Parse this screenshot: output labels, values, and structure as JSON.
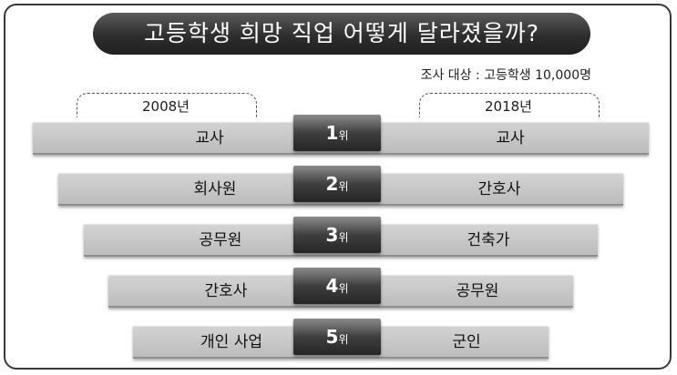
{
  "header": {
    "title": "고등학생 희망 직업 어떻게 달라졌을까?",
    "note": "조사 대상 : 고등학생 10,000명"
  },
  "chart_data": {
    "type": "table",
    "rank_unit": "위",
    "columns": [
      "2008년",
      "2018년"
    ],
    "rows": [
      {
        "rank": "1",
        "left": "교사",
        "right": "교사"
      },
      {
        "rank": "2",
        "left": "회사원",
        "right": "간호사"
      },
      {
        "rank": "3",
        "left": "공무원",
        "right": "건축가"
      },
      {
        "rank": "4",
        "left": "간호사",
        "right": "공무원"
      },
      {
        "rank": "5",
        "left": "개인 사업",
        "right": "군인"
      }
    ]
  },
  "colors": {
    "title_bg": "#2e2e2e",
    "bar": "#c6c6c6",
    "rank_bg": "#3f3f3f"
  }
}
